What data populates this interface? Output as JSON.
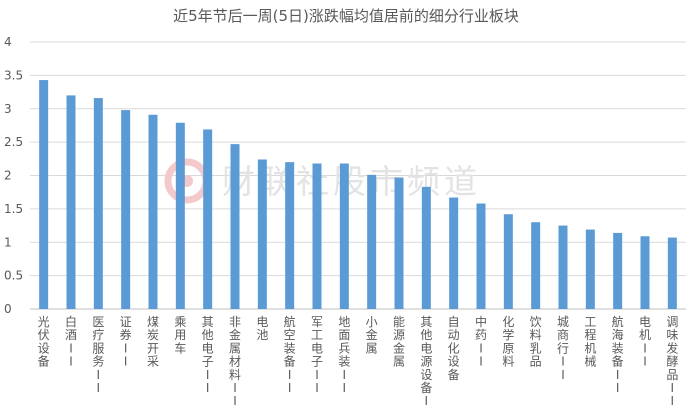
{
  "chart_data": {
    "type": "bar",
    "title": "近5年节后一周(5日)涨跌幅均值居前的细分行业板块",
    "xlabel": "",
    "ylabel": "",
    "ylim": [
      0,
      4
    ],
    "yticks": [
      "0",
      "0.5",
      "1",
      "1.5",
      "2",
      "2.5",
      "3",
      "3.5",
      "4"
    ],
    "grid": true,
    "legend": "none",
    "bar_color": "#5b9bd5",
    "categories": [
      "光伏设备",
      "白酒II",
      "医疗服务II",
      "证券II",
      "煤炭开采",
      "乘用车",
      "其他电子II",
      "非金属材料II",
      "电池",
      "航空装备II",
      "军工电子II",
      "地面兵装II",
      "小金属",
      "能源金属",
      "其他电源设备II",
      "自动化设备",
      "中药II",
      "化学原料",
      "饮料乳品",
      "城商行II",
      "工程机械",
      "航海装备II",
      "电机II",
      "调味发酵品II"
    ],
    "values": [
      3.43,
      3.2,
      3.16,
      2.98,
      2.91,
      2.79,
      2.69,
      2.47,
      2.24,
      2.2,
      2.18,
      2.18,
      2.01,
      1.97,
      1.83,
      1.67,
      1.58,
      1.42,
      1.3,
      1.25,
      1.19,
      1.14,
      1.09,
      1.07
    ]
  },
  "watermark": {
    "text": "财联社股市频道",
    "logo": "cls-logo-icon",
    "color": "#e3e3e3",
    "logo_color": "#f4c9cc"
  }
}
